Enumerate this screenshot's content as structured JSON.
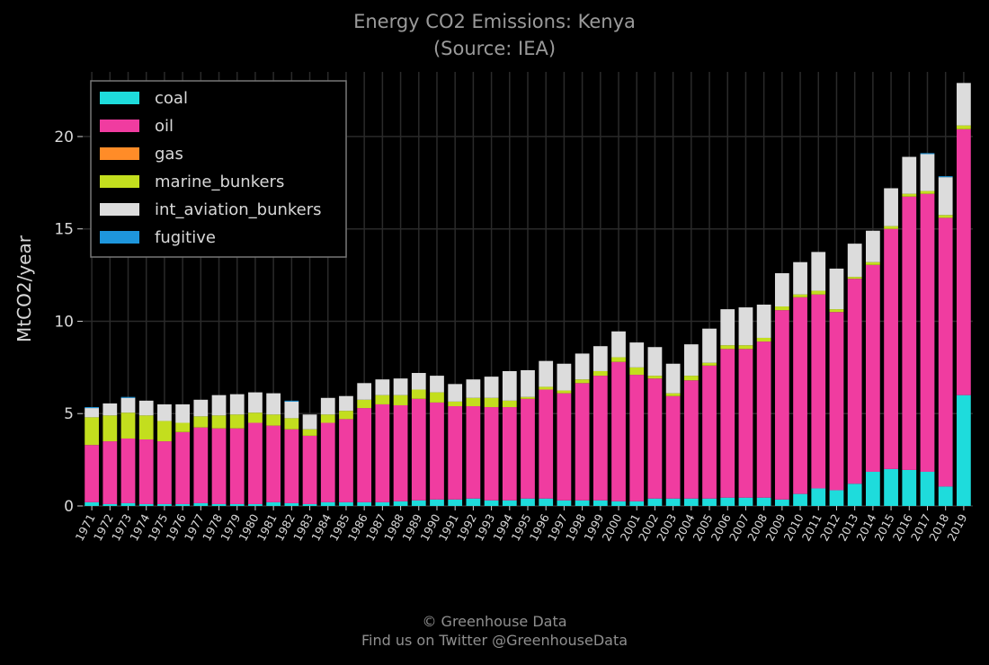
{
  "chart_data": {
    "type": "bar",
    "stacked": true,
    "title": "Energy CO2 Emissions: Kenya",
    "subtitle": "(Source: IEA)",
    "xlabel": "",
    "ylabel": "MtCO2/year",
    "ylim": [
      0,
      23.5
    ],
    "yticks": [
      0,
      5,
      10,
      15,
      20
    ],
    "grid": true,
    "legend_position": "top-left",
    "categories": [
      "1971",
      "1972",
      "1973",
      "1974",
      "1975",
      "1976",
      "1977",
      "1978",
      "1979",
      "1980",
      "1981",
      "1982",
      "1983",
      "1984",
      "1985",
      "1986",
      "1987",
      "1988",
      "1989",
      "1990",
      "1991",
      "1992",
      "1993",
      "1994",
      "1995",
      "1996",
      "1997",
      "1998",
      "1999",
      "2000",
      "2001",
      "2002",
      "2003",
      "2004",
      "2005",
      "2006",
      "2007",
      "2008",
      "2009",
      "2010",
      "2011",
      "2012",
      "2013",
      "2014",
      "2015",
      "2016",
      "2017",
      "2018",
      "2019"
    ],
    "series": [
      {
        "name": "coal",
        "color": "#1edcdc",
        "values": [
          0.2,
          0.1,
          0.15,
          0.1,
          0.1,
          0.1,
          0.15,
          0.1,
          0.1,
          0.1,
          0.2,
          0.15,
          0.1,
          0.2,
          0.2,
          0.2,
          0.2,
          0.25,
          0.3,
          0.35,
          0.35,
          0.4,
          0.3,
          0.3,
          0.4,
          0.4,
          0.3,
          0.3,
          0.3,
          0.25,
          0.25,
          0.4,
          0.4,
          0.4,
          0.4,
          0.45,
          0.45,
          0.45,
          0.35,
          0.65,
          0.95,
          0.85,
          1.2,
          1.85,
          2.0,
          1.95,
          1.85,
          1.05,
          6.0
        ]
      },
      {
        "name": "oil",
        "color": "#f03ca0",
        "values": [
          3.1,
          3.4,
          3.5,
          3.5,
          3.4,
          3.9,
          4.1,
          4.1,
          4.1,
          4.4,
          4.15,
          4.0,
          3.7,
          4.3,
          4.5,
          5.1,
          5.3,
          5.2,
          5.5,
          5.25,
          5.05,
          5.0,
          5.05,
          5.05,
          5.4,
          5.9,
          5.8,
          6.35,
          6.75,
          7.55,
          6.85,
          6.5,
          5.55,
          6.4,
          7.2,
          8.05,
          8.05,
          8.45,
          10.25,
          10.65,
          10.5,
          9.65,
          11.1,
          11.2,
          13.0,
          14.8,
          15.05,
          14.55,
          14.4
        ]
      },
      {
        "name": "gas",
        "color": "#ff8c28",
        "values": [
          0,
          0,
          0,
          0,
          0,
          0,
          0,
          0,
          0,
          0,
          0,
          0,
          0,
          0,
          0,
          0,
          0,
          0,
          0,
          0,
          0,
          0,
          0,
          0,
          0,
          0,
          0,
          0,
          0,
          0,
          0,
          0,
          0,
          0,
          0,
          0,
          0,
          0,
          0,
          0,
          0,
          0,
          0,
          0,
          0,
          0,
          0,
          0,
          0
        ]
      },
      {
        "name": "marine_bunkers",
        "color": "#c3de1e",
        "values": [
          1.5,
          1.4,
          1.4,
          1.3,
          1.1,
          0.5,
          0.6,
          0.7,
          0.75,
          0.55,
          0.6,
          0.6,
          0.35,
          0.45,
          0.45,
          0.45,
          0.5,
          0.55,
          0.5,
          0.55,
          0.25,
          0.45,
          0.5,
          0.35,
          0.1,
          0.15,
          0.15,
          0.2,
          0.25,
          0.25,
          0.4,
          0.15,
          0.15,
          0.25,
          0.15,
          0.2,
          0.2,
          0.2,
          0.2,
          0.15,
          0.2,
          0.15,
          0.1,
          0.15,
          0.15,
          0.15,
          0.15,
          0.15,
          0.2
        ]
      },
      {
        "name": "int_aviation_bunkers",
        "color": "#dcdcdc",
        "values": [
          0.5,
          0.65,
          0.8,
          0.8,
          0.9,
          1.0,
          0.9,
          1.1,
          1.1,
          1.1,
          1.15,
          0.9,
          0.8,
          0.9,
          0.8,
          0.9,
          0.85,
          0.9,
          0.9,
          0.9,
          0.95,
          1.0,
          1.15,
          1.6,
          1.45,
          1.4,
          1.45,
          1.4,
          1.35,
          1.4,
          1.35,
          1.55,
          1.6,
          1.7,
          1.85,
          1.95,
          2.05,
          1.8,
          1.8,
          1.75,
          2.1,
          2.2,
          1.8,
          1.7,
          2.05,
          2.0,
          2.0,
          2.05,
          2.3
        ]
      },
      {
        "name": "fugitive",
        "color": "#1e96dc",
        "values": [
          0.05,
          0,
          0.05,
          0,
          0,
          0,
          0,
          0,
          0,
          0,
          0,
          0.05,
          0,
          0,
          0,
          0,
          0,
          0,
          0,
          0,
          0,
          0,
          0,
          0,
          0,
          0,
          0,
          0,
          0,
          0,
          0,
          0,
          0,
          0,
          0,
          0,
          0,
          0,
          0,
          0,
          0,
          0,
          0,
          0,
          0,
          0,
          0.05,
          0.05,
          0
        ]
      }
    ]
  },
  "credits": {
    "line1": "© Greenhouse Data",
    "line2": "Find us on Twitter @GreenhouseData"
  },
  "theme": {
    "background": "#000000",
    "grid": "#2a2a2a",
    "text": "#d8d8d8",
    "title": "#9a9a9a"
  }
}
